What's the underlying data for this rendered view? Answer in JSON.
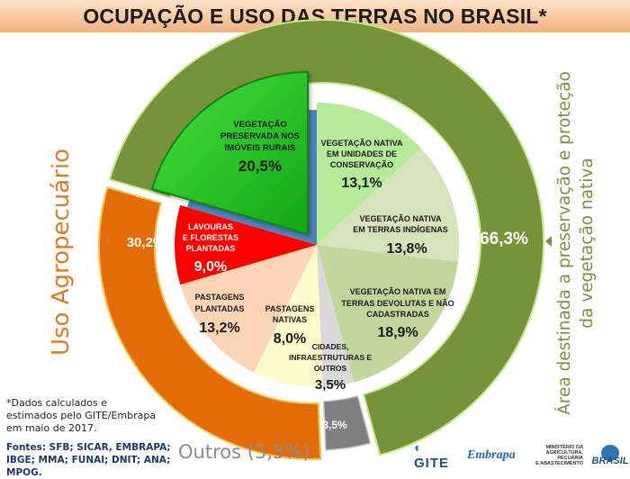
{
  "title": "OCUPAÇÃO E USO DAS TERRAS NO BRASIL*",
  "side_labels": {
    "left": "Uso Agropecuário",
    "right_line1": "Área destinada a preservação e proteção",
    "right_line2": "da vegetação nativa"
  },
  "ring_labels": {
    "green": "66,3%",
    "orange": "30,2%",
    "gray": "3,5%"
  },
  "slices": {
    "rural": {
      "l1": "VEGETAÇÃO",
      "l2": "PRESERVADA NOS",
      "l3": "IMÓVEIS RURAIS",
      "value": "20,5%"
    },
    "conservacao": {
      "l1": "VEGETAÇÃO NATIVA",
      "l2": "EM UNIDADES DE",
      "l3": "CONSERVAÇÃO",
      "value": "13,1%"
    },
    "indigenas": {
      "l1": "VEGETAÇÃO NATIVA",
      "l2": "EM TERRAS INDÍGENAS",
      "value": "13,8%"
    },
    "devolutas": {
      "l1": "VEGETAÇÃO NATIVA EM",
      "l2": "TERRAS DEVOLUTAS E NÃO",
      "l3": "CADASTRADAS",
      "value": "18,9%"
    },
    "cidades": {
      "l1": "CIDADES,",
      "l2": "INFRAESTRUTURAS E",
      "l3": "OUTROS",
      "value": "3,5%"
    },
    "past_nativas": {
      "l1": "PASTAGENS",
      "l2": "NATIVAS",
      "value": "8,0%"
    },
    "past_plantadas": {
      "l1": "PASTAGENS",
      "l2": "PLANTADAS",
      "value": "13,2%"
    },
    "lavouras": {
      "l1": "LAVOURAS",
      "l2": "E FLORESTAS",
      "l3": "PLANTADAS",
      "value": "9,0%"
    }
  },
  "footnote": "*Dados calculados e estimados pelo GITE/Embrapa em maio de 2017.",
  "sources": "Fontes: SFB; SICAR, EMBRAPA; IBGE; MMA; FUNAI; DNIT; ANA; MPOG.",
  "outros_label": "Outros (3,5%)",
  "logos": {
    "gite": "GITE",
    "embrapa": "Embrapa",
    "ministerio_l1": "MINISTÉRIO DA",
    "ministerio_l2": "AGRICULTURA, PECUÁRIA",
    "ministerio_l3": "E ABASTECIMENTO",
    "brasil": "BRASIL"
  },
  "colors": {
    "ring_green": "#76933c",
    "ring_orange": "#e36c09",
    "ring_gray": "#7f7f7f",
    "rural": "#22c31f",
    "conservacao": "#b7eb9a",
    "indigenas": "#d6e3bc",
    "devolutas": "#c3d69b",
    "cidades": "#d9d9d9",
    "past_nativas": "#fdfacb",
    "past_plantadas": "#fbd5b5",
    "lavouras": "#ff0000"
  },
  "chart_data": {
    "type": "pie",
    "title": "OCUPAÇÃO E USO DAS TERRAS NO BRASIL*",
    "inner_ring": {
      "categories": [
        "Vegetação nativa em unidades de conservação",
        "Vegetação nativa em terras indígenas",
        "Vegetação nativa em terras devolutas e não cadastradas",
        "Cidades, infraestruturas e outros",
        "Pastagens nativas",
        "Pastagens plantadas",
        "Lavouras e florestas plantadas",
        "Vegetação preservada nos imóveis rurais"
      ],
      "values": [
        13.1,
        13.8,
        18.9,
        3.5,
        8.0,
        13.2,
        9.0,
        20.5
      ],
      "unit": "%"
    },
    "outer_ring": {
      "categories": [
        "Área destinada a preservação e proteção da vegetação nativa",
        "Outros",
        "Uso Agropecuário"
      ],
      "values": [
        66.3,
        3.5,
        30.2
      ],
      "unit": "%"
    },
    "annotations": [
      "*Dados calculados e estimados pelo GITE/Embrapa em maio de 2017.",
      "Fontes: SFB; SICAR, EMBRAPA; IBGE; MMA; FUNAI; DNIT; ANA; MPOG."
    ]
  }
}
